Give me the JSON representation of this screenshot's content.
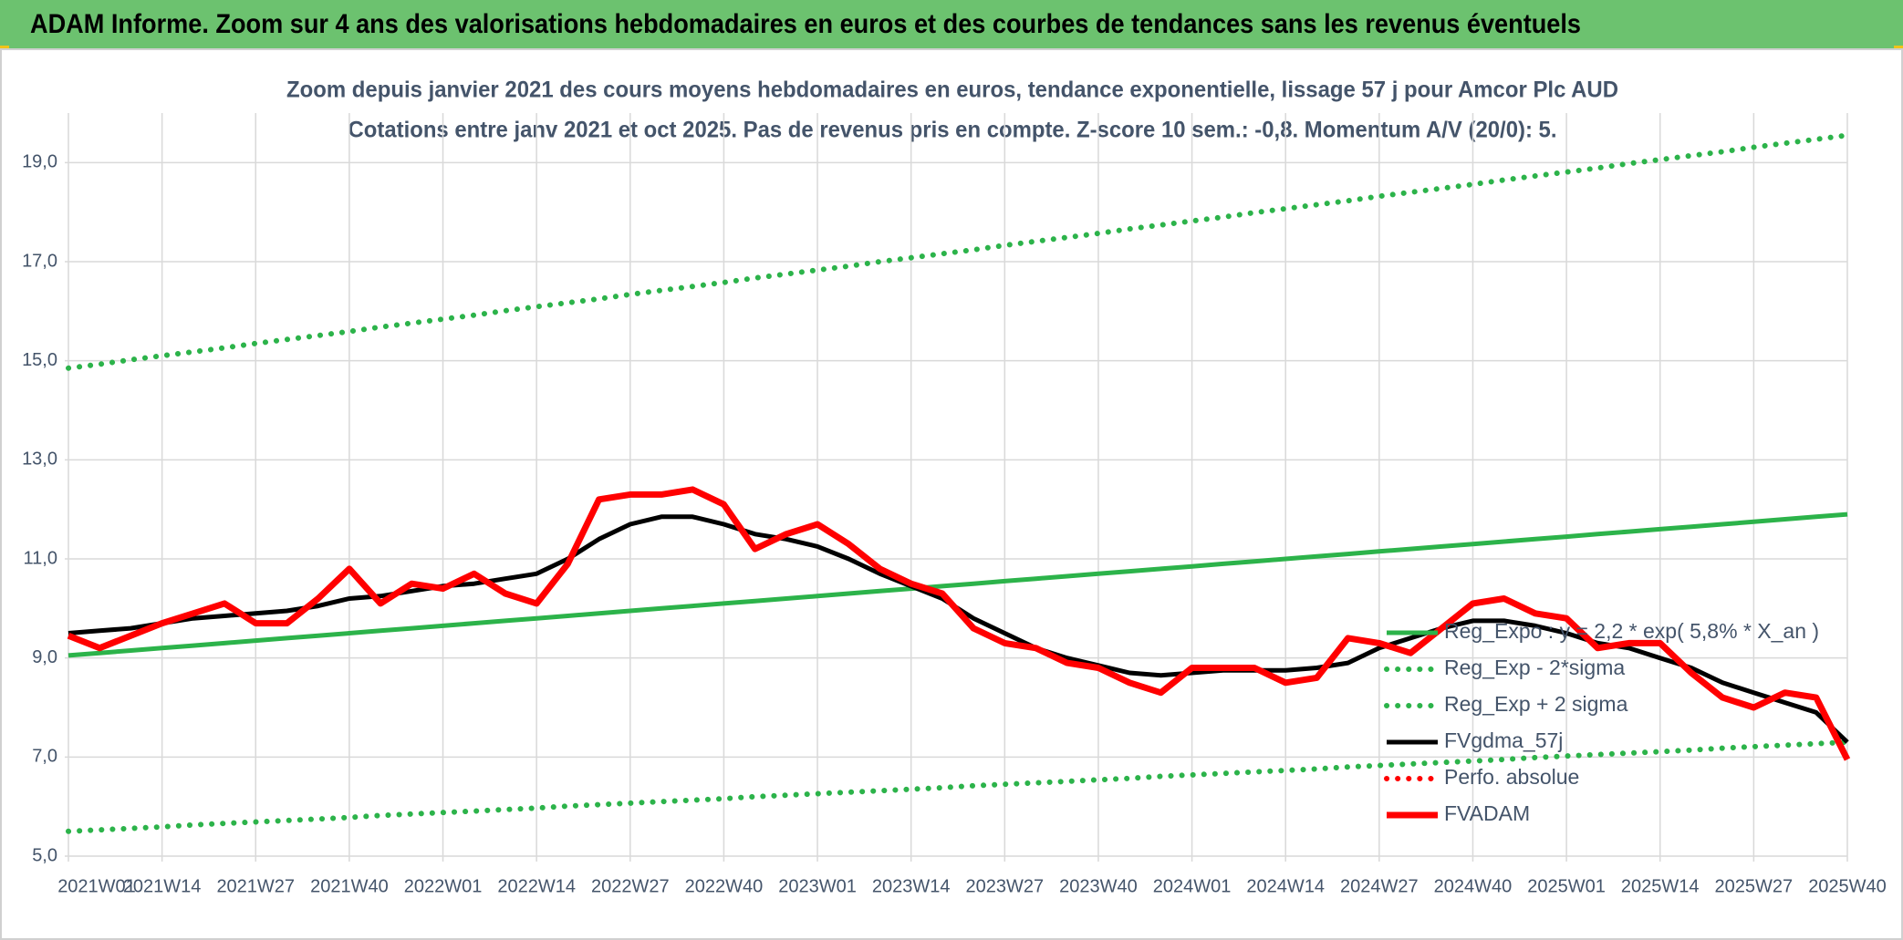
{
  "chart_data": {
    "type": "line",
    "header": "ADAM Informe. Zoom sur 4 ans des valorisations hebdomadaires en euros et des courbes de tendances sans les revenus éventuels",
    "title": "Zoom depuis janvier 2021 des cours moyens hebdomadaires en euros, tendance exponentielle, lissage 57 j pour Amcor Plc AUD",
    "subtitle": "Cotations entre janv 2021 et oct 2025. Pas de revenus pris en compte. Z-score 10 sem.: -0,8. Momentum A/V (20/0): 5.",
    "categories": [
      "2021W01",
      null,
      null,
      "2021W14",
      null,
      null,
      "2021W27",
      null,
      null,
      "2021W40",
      null,
      null,
      "2022W01",
      null,
      null,
      "2022W14",
      null,
      null,
      "2022W27",
      null,
      null,
      "2022W40",
      null,
      null,
      "2023W01",
      null,
      null,
      "2023W14",
      null,
      null,
      "2023W27",
      null,
      null,
      "2023W40",
      null,
      null,
      "2024W01",
      null,
      null,
      "2024W14",
      null,
      null,
      "2024W27",
      null,
      null,
      "2024W40",
      null,
      null,
      "2025W01",
      null,
      null,
      "2025W14",
      null,
      null,
      "2025W27",
      null,
      null,
      "2025W40"
    ],
    "ylim": [
      5,
      20
    ],
    "yticks": [
      {
        "value": 5,
        "label": "5,0"
      },
      {
        "value": 7,
        "label": "7,0"
      },
      {
        "value": 9,
        "label": "9,0"
      },
      {
        "value": 11,
        "label": "11,0"
      },
      {
        "value": 13,
        "label": "13,0"
      },
      {
        "value": 15,
        "label": "15,0"
      },
      {
        "value": 17,
        "label": "17,0"
      },
      {
        "value": 19,
        "label": "19,0"
      }
    ],
    "grid": true,
    "legend": "right",
    "series": [
      {
        "name": "Reg_Expo : y = 2,2 * exp( 5,8% *  X_an )",
        "color": "#2cb34a",
        "line_style": "solid",
        "values": [
          9.05,
          9.1,
          9.15,
          9.2,
          9.25,
          9.3,
          9.35,
          9.4,
          9.45,
          9.5,
          9.55,
          9.6,
          9.65,
          9.7,
          9.75,
          9.8,
          9.85,
          9.9,
          9.95,
          10.0,
          10.05,
          10.1,
          10.15,
          10.2,
          10.25,
          10.3,
          10.35,
          10.4,
          10.45,
          10.5,
          10.55,
          10.6,
          10.65,
          10.7,
          10.75,
          10.8,
          10.85,
          10.9,
          10.95,
          11.0,
          11.05,
          11.1,
          11.15,
          11.2,
          11.25,
          11.3,
          11.35,
          11.4,
          11.45,
          11.5,
          11.55,
          11.6,
          11.65,
          11.7,
          11.75,
          11.8,
          11.85,
          11.9
        ]
      },
      {
        "name": "Reg_Exp - 2*sigma",
        "color": "#2cb34a",
        "line_style": "dotted",
        "values": [
          5.5,
          5.53,
          5.56,
          5.59,
          5.63,
          5.66,
          5.69,
          5.72,
          5.75,
          5.78,
          5.82,
          5.85,
          5.88,
          5.91,
          5.94,
          5.97,
          6.01,
          6.04,
          6.07,
          6.1,
          6.13,
          6.16,
          6.2,
          6.23,
          6.26,
          6.29,
          6.32,
          6.35,
          6.38,
          6.42,
          6.45,
          6.48,
          6.51,
          6.54,
          6.57,
          6.61,
          6.64,
          6.67,
          6.7,
          6.73,
          6.76,
          6.8,
          6.83,
          6.86,
          6.89,
          6.92,
          6.95,
          6.99,
          7.02,
          7.05,
          7.08,
          7.11,
          7.14,
          7.18,
          7.21,
          7.24,
          7.27,
          7.3
        ]
      },
      {
        "name": "Reg_Exp + 2 sigma",
        "color": "#2cb34a",
        "line_style": "dotted",
        "values": [
          14.85,
          14.93,
          15.02,
          15.1,
          15.18,
          15.26,
          15.35,
          15.43,
          15.51,
          15.59,
          15.68,
          15.76,
          15.84,
          15.92,
          16.01,
          16.09,
          16.17,
          16.25,
          16.34,
          16.42,
          16.5,
          16.58,
          16.67,
          16.75,
          16.83,
          16.91,
          17.0,
          17.08,
          17.16,
          17.24,
          17.33,
          17.41,
          17.49,
          17.57,
          17.66,
          17.74,
          17.82,
          17.9,
          17.99,
          18.07,
          18.15,
          18.23,
          18.32,
          18.4,
          18.48,
          18.56,
          18.65,
          18.73,
          18.81,
          18.89,
          18.98,
          19.06,
          19.14,
          19.22,
          19.31,
          19.39,
          19.47,
          19.55
        ]
      },
      {
        "name": "FVgdma_57j",
        "color": "#000000",
        "line_style": "solid",
        "values": [
          9.5,
          9.55,
          9.6,
          9.7,
          9.8,
          9.85,
          9.9,
          9.95,
          10.05,
          10.2,
          10.25,
          10.35,
          10.45,
          10.5,
          10.6,
          10.7,
          11.0,
          11.4,
          11.7,
          11.85,
          11.85,
          11.7,
          11.5,
          11.4,
          11.25,
          11.0,
          10.7,
          10.45,
          10.2,
          9.8,
          9.5,
          9.2,
          9.0,
          8.85,
          8.7,
          8.65,
          8.7,
          8.75,
          8.75,
          8.75,
          8.8,
          8.9,
          9.2,
          9.4,
          9.6,
          9.75,
          9.75,
          9.65,
          9.5,
          9.3,
          9.2,
          9.0,
          8.8,
          8.5,
          8.3,
          8.1,
          7.9,
          7.3
        ]
      },
      {
        "name": "Perfo. absolue",
        "color": "#ff0000",
        "line_style": "dotted",
        "values": [
          null,
          null,
          null,
          null,
          null,
          null,
          null,
          null,
          null,
          null,
          null,
          null,
          null,
          null,
          null,
          null,
          null,
          null,
          null,
          null,
          null,
          null,
          null,
          null,
          null,
          null,
          null,
          null,
          null,
          null,
          null,
          null,
          null,
          null,
          null,
          null,
          null,
          null,
          null,
          null,
          null,
          null,
          null,
          null,
          null,
          null,
          null,
          null,
          null,
          null,
          null,
          null,
          null,
          null,
          null,
          null,
          null,
          null
        ]
      },
      {
        "name": "FVADAM",
        "color": "#ff0000",
        "line_style": "thick",
        "values": [
          9.45,
          9.2,
          9.45,
          9.7,
          9.9,
          10.1,
          9.7,
          9.7,
          10.2,
          10.8,
          10.1,
          10.5,
          10.4,
          10.7,
          10.3,
          10.1,
          10.9,
          12.2,
          12.3,
          12.3,
          12.4,
          12.1,
          11.2,
          11.5,
          11.7,
          11.3,
          10.8,
          10.5,
          10.3,
          9.6,
          9.3,
          9.2,
          8.9,
          8.8,
          8.5,
          8.3,
          8.8,
          8.8,
          8.8,
          8.5,
          8.6,
          9.4,
          9.3,
          9.1,
          9.6,
          10.1,
          10.2,
          9.9,
          9.8,
          9.2,
          9.3,
          9.3,
          8.7,
          8.2,
          8.0,
          8.3,
          8.2,
          6.95
        ]
      }
    ]
  }
}
